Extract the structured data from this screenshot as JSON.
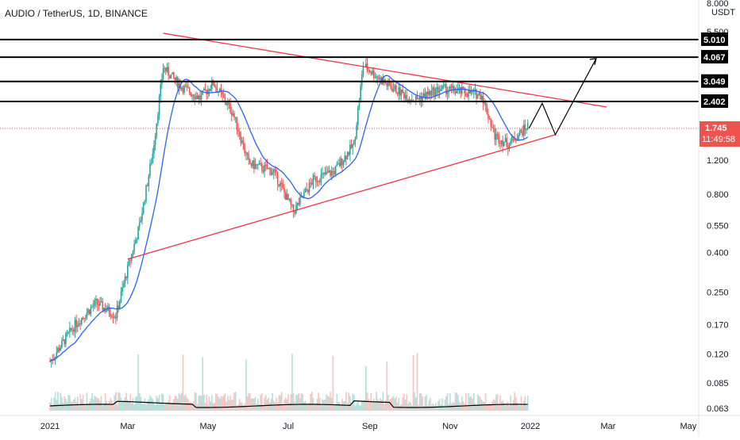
{
  "symbol_title": "AUDIO / TetherUS, 1D, BINANCE",
  "chart_data": {
    "type": "candlestick",
    "title": "AUDIO / TetherUS, 1D, BINANCE",
    "currency_label": "USDT",
    "y_scale": "log",
    "ylim": [
      0.063,
      8.0
    ],
    "y_ticks": [
      "8.000",
      "5.500",
      "1.200",
      "0.800",
      "0.550",
      "0.400",
      "0.250",
      "0.170",
      "0.120",
      "0.085",
      "0.063"
    ],
    "x_ticks": [
      "2021",
      "Mar",
      "May",
      "Jul",
      "Sep",
      "Nov",
      "2022",
      "Mar",
      "May"
    ],
    "last_price": {
      "value": "1.745",
      "countdown": "11:49:58",
      "color": "#ef5350"
    },
    "horizontal_levels": [
      {
        "value": "5.010"
      },
      {
        "value": "4.067"
      },
      {
        "value": "3.049"
      },
      {
        "value": "2.402"
      }
    ],
    "trendlines": [
      {
        "name": "descending-resistance",
        "from": {
          "date": "2021-03-28",
          "price": 5.4
        },
        "to": {
          "date": "2022-02-28",
          "price": 2.25
        },
        "color": "#f23645"
      },
      {
        "name": "ascending-support",
        "from": {
          "date": "2021-03-01",
          "price": 0.37
        },
        "to": {
          "date": "2022-01-20",
          "price": 1.62
        },
        "color": "#f23645"
      }
    ],
    "projection_path": [
      {
        "date": "2021-12-31",
        "price": 1.75
      },
      {
        "date": "2022-01-10",
        "price": 2.35
      },
      {
        "date": "2022-01-20",
        "price": 1.62
      },
      {
        "date": "2022-02-20",
        "price": 4.0
      }
    ],
    "colors": {
      "up": "#26a69a",
      "down": "#ef5350",
      "ma": "#2962ff",
      "volume_ma": "#000000",
      "level_line": "#000000",
      "tag_bg": "#000000"
    }
  }
}
